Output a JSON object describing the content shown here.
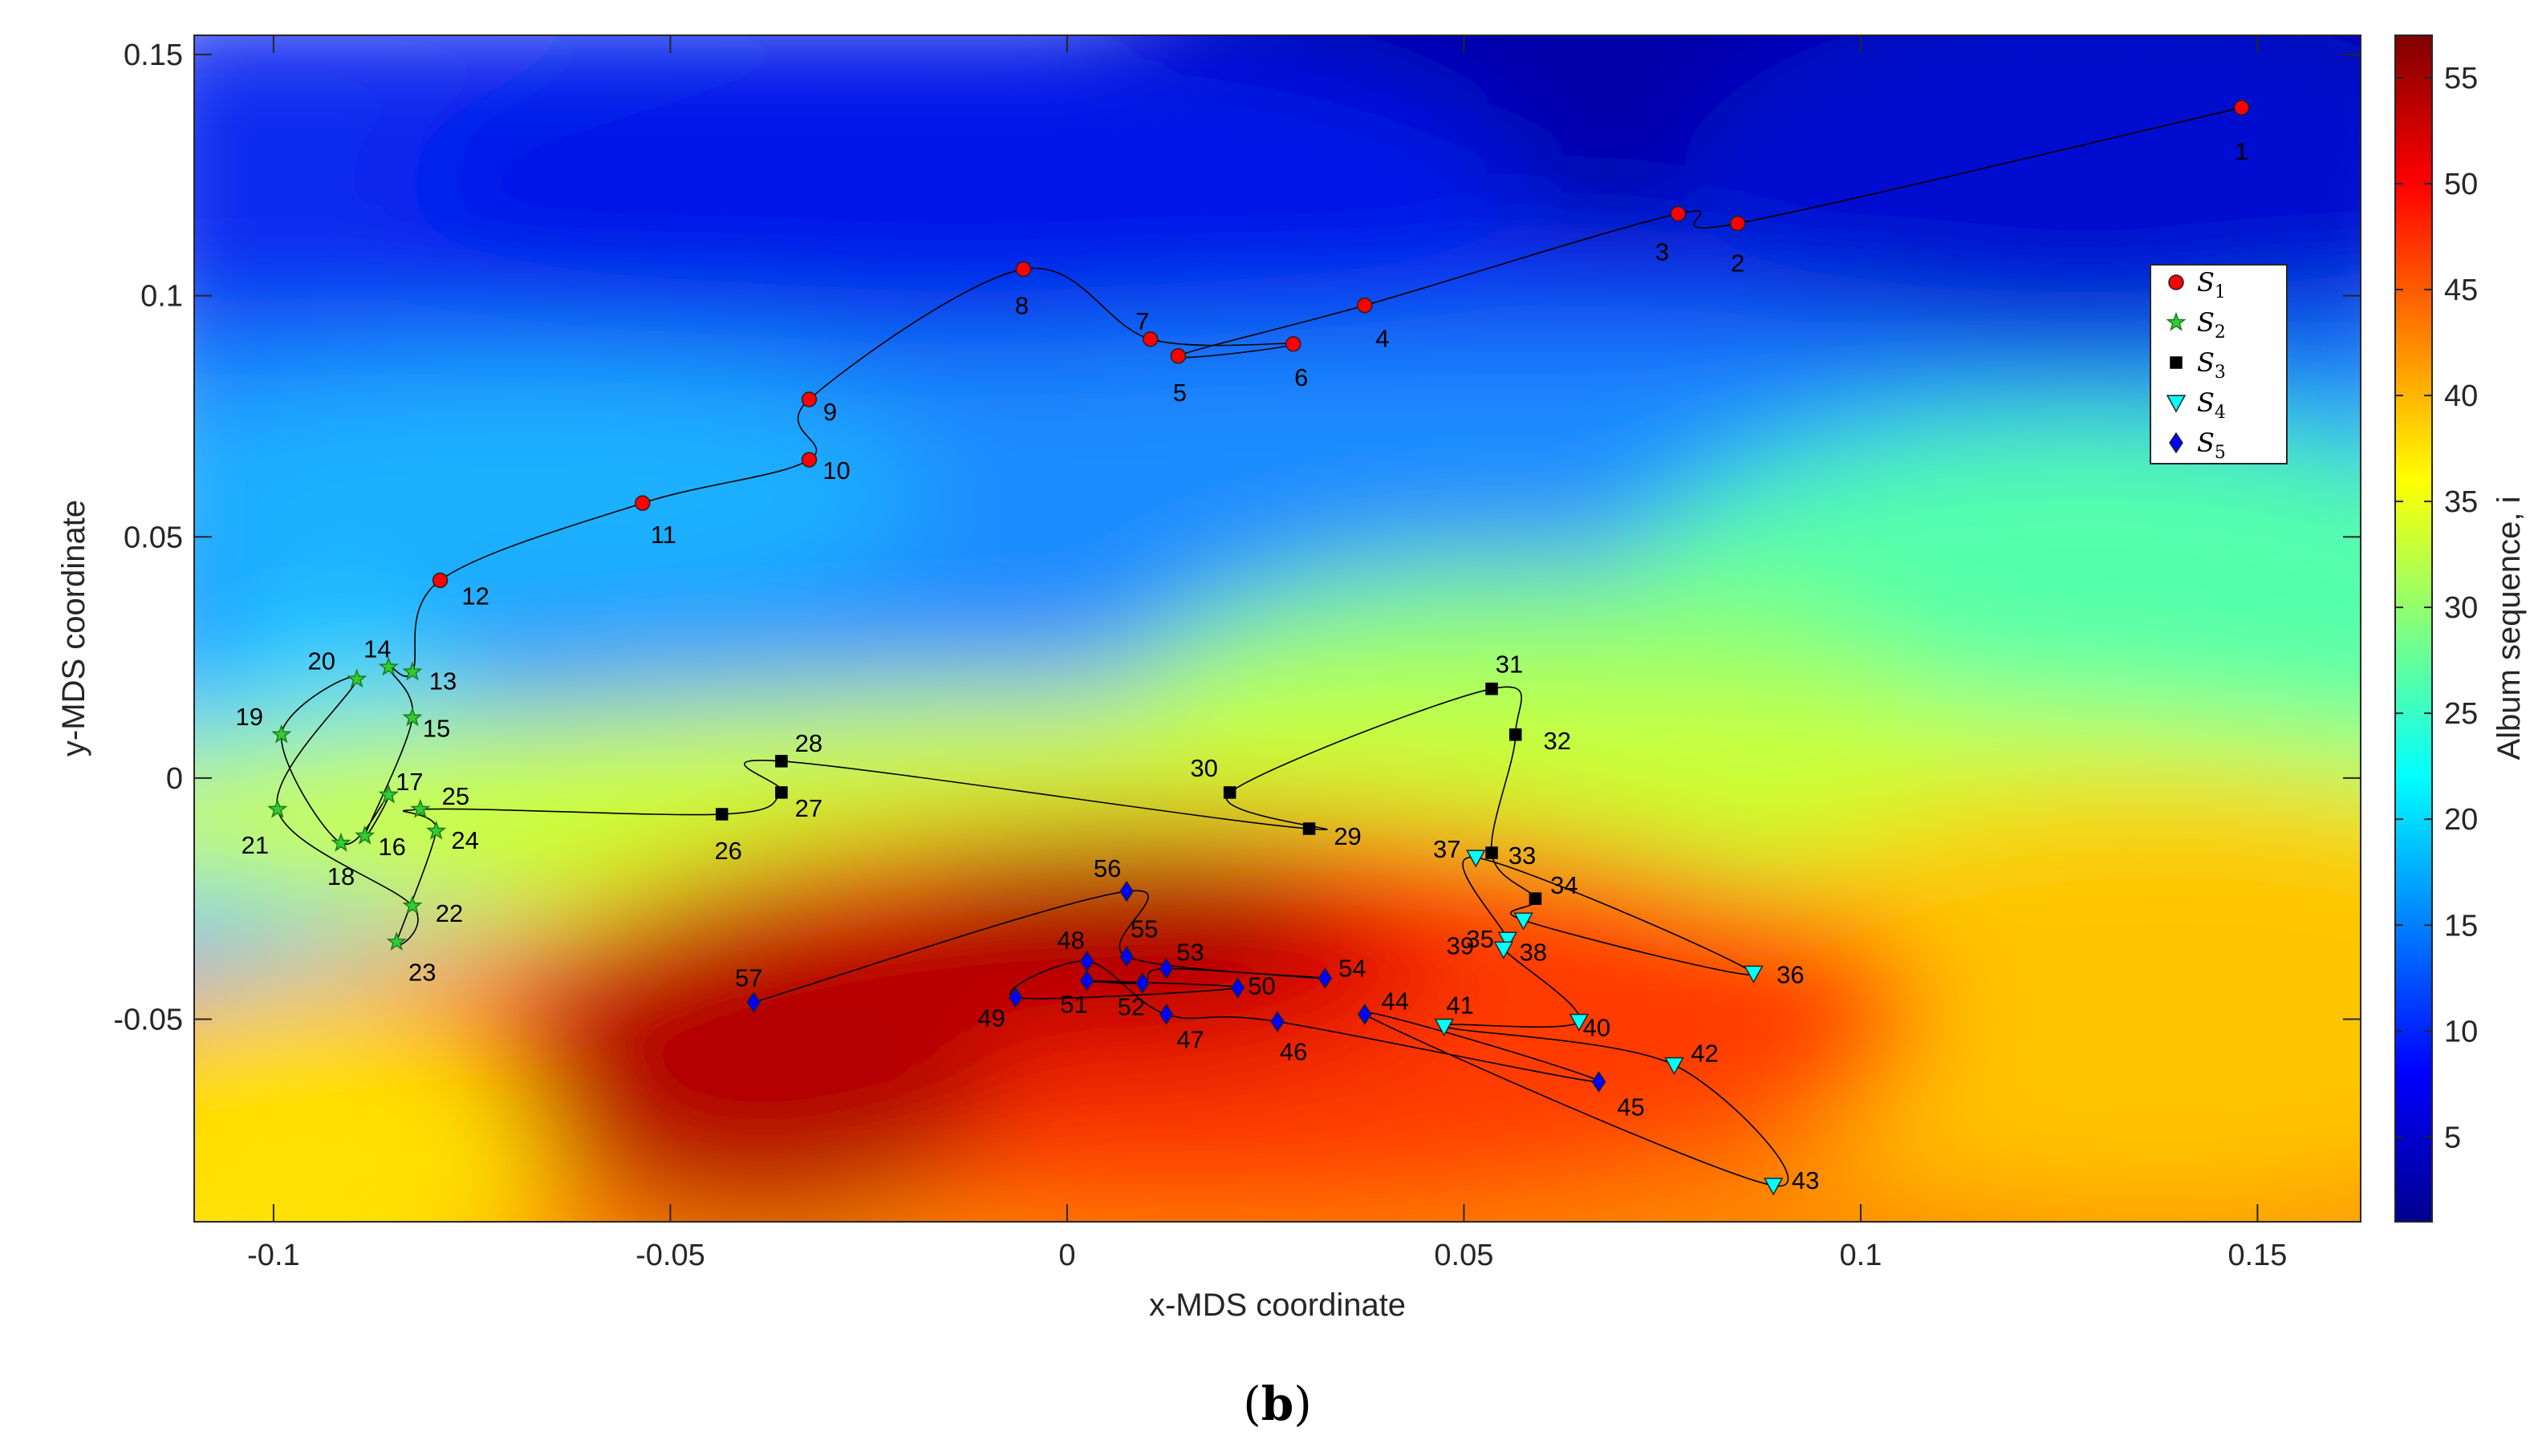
{
  "caption": {
    "label": "b",
    "open": "(",
    "close": ")"
  },
  "chart_data": {
    "type": "scatter",
    "xlabel": "x-MDS coordinate",
    "ylabel": "y-MDS coordinate",
    "xlim": [
      -0.11,
      0.163
    ],
    "ylim": [
      -0.092,
      0.154
    ],
    "xticks": [
      -0.1,
      -0.05,
      0,
      0.05,
      0.1,
      0.15
    ],
    "xtick_labels": [
      "-0.1",
      "-0.05",
      "0",
      "0.05",
      "0.1",
      "0.15"
    ],
    "yticks": [
      -0.05,
      0,
      0.05,
      0.1,
      0.15
    ],
    "ytick_labels": [
      "-0.05",
      "0",
      "0.05",
      "0.1",
      "0.15"
    ],
    "colorbar": {
      "label": "Album sequence,  i",
      "min": 1,
      "max": 57,
      "ticks": [
        5,
        10,
        15,
        20,
        25,
        30,
        35,
        40,
        45,
        50,
        55
      ],
      "tick_labels": [
        "5",
        "10",
        "15",
        "20",
        "25",
        "30",
        "35",
        "40",
        "45",
        "50",
        "55"
      ],
      "colormap": "jet"
    },
    "legend_position": "upper-right",
    "series": [
      {
        "name": "S",
        "sub": "1",
        "marker": "circle",
        "color": "#ff0000",
        "points": [
          {
            "id": 1,
            "label": "1",
            "x": 0.148,
            "y": 0.139
          },
          {
            "id": 2,
            "label": "2",
            "x": 0.0845,
            "y": 0.115
          },
          {
            "id": 3,
            "label": "3",
            "x": 0.077,
            "y": 0.117
          },
          {
            "id": 4,
            "label": "4",
            "x": 0.0375,
            "y": 0.098
          },
          {
            "id": 5,
            "label": "5",
            "x": 0.014,
            "y": 0.0875
          },
          {
            "id": 6,
            "label": "6",
            "x": 0.0285,
            "y": 0.09
          },
          {
            "id": 7,
            "label": "7",
            "x": 0.0105,
            "y": 0.091
          },
          {
            "id": 8,
            "label": "8",
            "x": -0.0055,
            "y": 0.1055
          },
          {
            "id": 9,
            "label": "9",
            "x": -0.0325,
            "y": 0.0785
          },
          {
            "id": 10,
            "label": "10",
            "x": -0.0325,
            "y": 0.066
          },
          {
            "id": 11,
            "label": "11",
            "x": -0.0535,
            "y": 0.057
          },
          {
            "id": 12,
            "label": "12",
            "x": -0.079,
            "y": 0.041
          }
        ]
      },
      {
        "name": "S",
        "sub": "2",
        "marker": "star",
        "color": "#33cc33",
        "points": [
          {
            "id": 13,
            "label": "13",
            "x": -0.0825,
            "y": 0.022
          },
          {
            "id": 14,
            "label": "14",
            "x": -0.0855,
            "y": 0.023
          },
          {
            "id": 15,
            "label": "15",
            "x": -0.0825,
            "y": 0.0125
          },
          {
            "id": 16,
            "label": "16",
            "x": -0.0885,
            "y": -0.012
          },
          {
            "id": 17,
            "label": "17",
            "x": -0.0855,
            "y": -0.0035
          },
          {
            "id": 18,
            "label": "18",
            "x": -0.0915,
            "y": -0.0135
          },
          {
            "id": 19,
            "label": "19",
            "x": -0.099,
            "y": 0.009
          },
          {
            "id": 20,
            "label": "20",
            "x": -0.0895,
            "y": 0.0205
          },
          {
            "id": 21,
            "label": "21",
            "x": -0.0995,
            "y": -0.0065
          },
          {
            "id": 22,
            "label": "22",
            "x": -0.0825,
            "y": -0.0265
          },
          {
            "id": 23,
            "label": "23",
            "x": -0.0845,
            "y": -0.034
          },
          {
            "id": 24,
            "label": "24",
            "x": -0.0795,
            "y": -0.011
          },
          {
            "id": 25,
            "label": "25",
            "x": -0.0815,
            "y": -0.0065
          }
        ]
      },
      {
        "name": "S",
        "sub": "3",
        "marker": "square",
        "color": "#000000",
        "points": [
          {
            "id": 26,
            "label": "26",
            "x": -0.0435,
            "y": -0.0075
          },
          {
            "id": 27,
            "label": "27",
            "x": -0.036,
            "y": -0.003
          },
          {
            "id": 28,
            "label": "28",
            "x": -0.036,
            "y": 0.0035
          },
          {
            "id": 29,
            "label": "29",
            "x": 0.0305,
            "y": -0.0105
          },
          {
            "id": 30,
            "label": "30",
            "x": 0.0205,
            "y": -0.003
          },
          {
            "id": 31,
            "label": "31",
            "x": 0.0535,
            "y": 0.0185
          },
          {
            "id": 32,
            "label": "32",
            "x": 0.0565,
            "y": 0.009
          },
          {
            "id": 33,
            "label": "33",
            "x": 0.0535,
            "y": -0.0155
          },
          {
            "id": 34,
            "label": "34",
            "x": 0.059,
            "y": -0.025
          }
        ]
      },
      {
        "name": "S",
        "sub": "4",
        "marker": "triangle-down",
        "color": "#00ffff",
        "points": [
          {
            "id": 35,
            "label": "35",
            "x": 0.0575,
            "y": -0.0295
          },
          {
            "id": 36,
            "label": "36",
            "x": 0.0865,
            "y": -0.0405
          },
          {
            "id": 37,
            "label": "37",
            "x": 0.0515,
            "y": -0.0165
          },
          {
            "id": 38,
            "label": "38",
            "x": 0.0555,
            "y": -0.0335
          },
          {
            "id": 39,
            "label": "39",
            "x": 0.055,
            "y": -0.0355
          },
          {
            "id": 40,
            "label": "40",
            "x": 0.0645,
            "y": -0.0505
          },
          {
            "id": 41,
            "label": "41",
            "x": 0.0475,
            "y": -0.0515
          },
          {
            "id": 42,
            "label": "42",
            "x": 0.0765,
            "y": -0.0595
          },
          {
            "id": 43,
            "label": "43",
            "x": 0.089,
            "y": -0.0845
          }
        ]
      },
      {
        "name": "S",
        "sub": "5",
        "marker": "diamond",
        "color": "#0000ff",
        "points": [
          {
            "id": 44,
            "label": "44",
            "x": 0.0375,
            "y": -0.049
          },
          {
            "id": 45,
            "label": "45",
            "x": 0.067,
            "y": -0.063
          },
          {
            "id": 46,
            "label": "46",
            "x": 0.0265,
            "y": -0.0505
          },
          {
            "id": 47,
            "label": "47",
            "x": 0.0125,
            "y": -0.049
          },
          {
            "id": 48,
            "label": "48",
            "x": 0.0025,
            "y": -0.038
          },
          {
            "id": 49,
            "label": "49",
            "x": -0.0065,
            "y": -0.0455
          },
          {
            "id": 50,
            "label": "50",
            "x": 0.0215,
            "y": -0.0435
          },
          {
            "id": 51,
            "label": "51",
            "x": 0.0025,
            "y": -0.042
          },
          {
            "id": 52,
            "label": "52",
            "x": 0.0095,
            "y": -0.0425
          },
          {
            "id": 53,
            "label": "53",
            "x": 0.0125,
            "y": -0.0395
          },
          {
            "id": 54,
            "label": "54",
            "x": 0.0325,
            "y": -0.0415
          },
          {
            "id": 55,
            "label": "55",
            "x": 0.0075,
            "y": -0.037
          },
          {
            "id": 56,
            "label": "56",
            "x": 0.0075,
            "y": -0.0235
          },
          {
            "id": 57,
            "label": "57",
            "x": -0.0395,
            "y": -0.0465
          }
        ]
      }
    ]
  }
}
